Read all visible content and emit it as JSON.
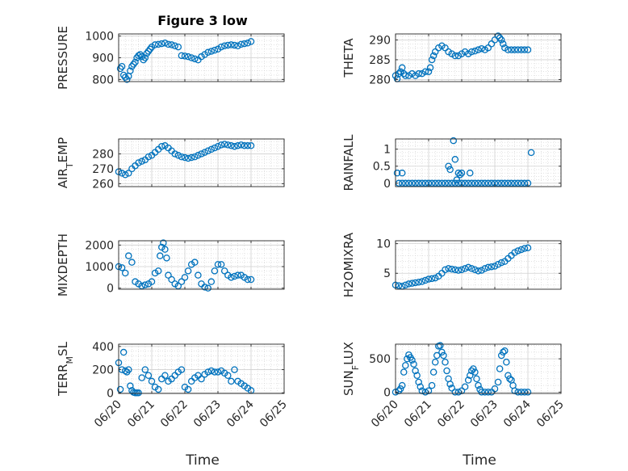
{
  "figure": {
    "title": "Figure 3 low",
    "xlabel": "Time",
    "xticks": [
      "06/20",
      "06/21",
      "06/22",
      "06/23",
      "06/24",
      "06/25"
    ]
  },
  "colors": {
    "marker": "#0072BD",
    "grid": "#d0d0d0",
    "axis": "#262626"
  },
  "chart_data": [
    {
      "type": "scatter",
      "ylabel": "PRESSURE",
      "ylim": [
        790,
        1010
      ],
      "yticks": [
        "800",
        "900",
        "1000"
      ],
      "grid": true,
      "marker": "open-circle",
      "x": [
        20.05,
        20.1,
        20.15,
        20.2,
        20.25,
        20.3,
        20.35,
        20.4,
        20.45,
        20.5,
        20.55,
        20.6,
        20.65,
        20.7,
        20.75,
        20.8,
        20.85,
        20.9,
        20.95,
        21.0,
        21.1,
        21.2,
        21.3,
        21.4,
        21.5,
        21.6,
        21.7,
        21.8,
        21.9,
        22.0,
        22.1,
        22.2,
        22.3,
        22.4,
        22.5,
        22.6,
        22.7,
        22.8,
        22.9,
        23.0,
        23.1,
        23.2,
        23.3,
        23.4,
        23.5,
        23.6,
        23.7,
        23.8,
        23.9,
        24.0
      ],
      "y": [
        850,
        860,
        820,
        810,
        800,
        815,
        840,
        860,
        870,
        880,
        900,
        910,
        915,
        905,
        890,
        900,
        920,
        930,
        940,
        950,
        960,
        962,
        965,
        968,
        962,
        960,
        955,
        950,
        910,
        908,
        905,
        900,
        895,
        890,
        905,
        915,
        925,
        930,
        935,
        940,
        950,
        955,
        958,
        960,
        958,
        955,
        962,
        965,
        968,
        975
      ]
    },
    {
      "type": "scatter",
      "ylabel": "THETA",
      "ylim": [
        279.5,
        291.5
      ],
      "yticks": [
        "280",
        "285",
        "290"
      ],
      "grid": true,
      "marker": "open-circle",
      "x": [
        20.0,
        20.05,
        20.1,
        20.15,
        20.2,
        20.25,
        20.3,
        20.4,
        20.5,
        20.6,
        20.7,
        20.8,
        20.9,
        21.0,
        21.05,
        21.1,
        21.15,
        21.2,
        21.3,
        21.4,
        21.5,
        21.6,
        21.7,
        21.8,
        21.9,
        22.0,
        22.1,
        22.2,
        22.3,
        22.4,
        22.5,
        22.6,
        22.7,
        22.8,
        22.9,
        23.0,
        23.1,
        23.15,
        23.2,
        23.25,
        23.3,
        23.4,
        23.5,
        23.6,
        23.7,
        23.8,
        23.9,
        24.0
      ],
      "y": [
        281,
        280.2,
        281.5,
        282,
        283,
        281.5,
        281,
        281,
        281.5,
        281,
        281.5,
        281.5,
        282,
        282,
        283,
        285,
        286,
        287,
        288,
        288.5,
        288,
        287,
        286.5,
        286,
        286,
        286.5,
        287,
        286.5,
        287,
        287.2,
        287.5,
        287.8,
        287.5,
        288,
        289,
        290,
        291,
        290.5,
        290,
        289,
        288,
        287.5,
        287.5,
        287.5,
        287.5,
        287.5,
        287.5,
        287.5
      ]
    },
    {
      "type": "scatter",
      "ylabel": "AIR_TEMP",
      "ylim": [
        258,
        290
      ],
      "yticks": [
        "260",
        "270",
        "280"
      ],
      "grid": true,
      "marker": "open-circle",
      "x": [
        20.0,
        20.1,
        20.2,
        20.3,
        20.4,
        20.5,
        20.6,
        20.7,
        20.8,
        20.9,
        21.0,
        21.1,
        21.2,
        21.3,
        21.4,
        21.5,
        21.6,
        21.7,
        21.8,
        21.9,
        22.0,
        22.1,
        22.2,
        22.3,
        22.4,
        22.5,
        22.6,
        22.7,
        22.8,
        22.9,
        23.0,
        23.1,
        23.2,
        23.3,
        23.4,
        23.5,
        23.6,
        23.7,
        23.8,
        23.9,
        24.0
      ],
      "y": [
        268,
        267,
        266,
        267,
        270,
        272,
        274,
        275,
        276,
        278,
        279,
        281,
        283,
        285,
        285.5,
        284,
        282,
        280,
        279,
        278,
        277.5,
        277,
        277.5,
        278,
        279,
        280,
        281,
        282,
        283,
        284,
        285,
        286,
        286.5,
        286,
        285.5,
        285,
        285.5,
        286,
        285.5,
        285.5,
        285.5
      ]
    },
    {
      "type": "scatter",
      "ylabel": "RAINFALL",
      "ylim": [
        -0.1,
        1.3
      ],
      "yticks": [
        "0",
        "0.5",
        "1"
      ],
      "grid": true,
      "marker": "open-circle",
      "x": [
        20.1,
        20.2,
        20.3,
        20.4,
        20.5,
        20.6,
        20.7,
        20.8,
        20.9,
        21.0,
        21.1,
        21.2,
        21.3,
        21.4,
        21.5,
        21.6,
        21.7,
        21.8,
        21.9,
        22.0,
        22.1,
        22.2,
        22.3,
        22.4,
        22.5,
        22.6,
        22.7,
        22.8,
        22.9,
        23.0,
        23.1,
        23.2,
        23.3,
        23.4,
        23.5,
        23.6,
        23.7,
        23.8,
        23.9,
        24.0,
        20.05,
        20.2,
        21.6,
        21.65,
        21.75,
        21.8,
        21.85,
        21.9,
        21.95,
        22.0,
        22.25,
        24.1
      ],
      "y": [
        0,
        0,
        0,
        0,
        0,
        0,
        0,
        0,
        0,
        0,
        0,
        0,
        0,
        0,
        0,
        0,
        0,
        0,
        0,
        0,
        0,
        0,
        0,
        0,
        0,
        0,
        0,
        0,
        0,
        0,
        0,
        0,
        0,
        0,
        0,
        0,
        0,
        0,
        0,
        0,
        0.3,
        0.3,
        0.5,
        0.4,
        1.25,
        0.7,
        0.1,
        0.3,
        0.25,
        0.3,
        0.3,
        0.9
      ]
    },
    {
      "type": "scatter",
      "ylabel": "MIXDEPTH",
      "ylim": [
        -50,
        2200
      ],
      "yticks": [
        "0",
        "1000",
        "2000"
      ],
      "grid": true,
      "marker": "open-circle",
      "x": [
        20.0,
        20.1,
        20.2,
        20.3,
        20.4,
        20.5,
        20.6,
        20.7,
        20.8,
        20.9,
        21.0,
        21.1,
        21.2,
        21.25,
        21.3,
        21.35,
        21.4,
        21.45,
        21.5,
        21.6,
        21.7,
        21.8,
        21.9,
        22.0,
        22.1,
        22.2,
        22.3,
        22.4,
        22.5,
        22.6,
        22.7,
        22.8,
        22.9,
        23.0,
        23.1,
        23.2,
        23.3,
        23.4,
        23.5,
        23.6,
        23.7,
        23.8,
        23.9,
        24.0
      ],
      "y": [
        1000,
        950,
        700,
        1500,
        1200,
        300,
        200,
        100,
        150,
        200,
        300,
        700,
        800,
        1500,
        1900,
        2100,
        1800,
        1400,
        600,
        400,
        200,
        100,
        300,
        500,
        800,
        1100,
        1200,
        600,
        200,
        50,
        0,
        300,
        800,
        1100,
        1100,
        800,
        600,
        500,
        550,
        600,
        600,
        500,
        400,
        400
      ]
    },
    {
      "type": "scatter",
      "ylabel": "H2OMIXRA",
      "ylim": [
        2.3,
        10.5
      ],
      "yticks": [
        "5",
        "10"
      ],
      "grid": true,
      "marker": "open-circle",
      "x": [
        20.0,
        20.1,
        20.2,
        20.3,
        20.4,
        20.5,
        20.6,
        20.7,
        20.8,
        20.9,
        21.0,
        21.1,
        21.2,
        21.3,
        21.4,
        21.5,
        21.6,
        21.7,
        21.8,
        21.9,
        22.0,
        22.1,
        22.2,
        22.3,
        22.4,
        22.5,
        22.6,
        22.7,
        22.8,
        22.9,
        23.0,
        23.1,
        23.2,
        23.3,
        23.4,
        23.5,
        23.6,
        23.7,
        23.8,
        23.9,
        24.0
      ],
      "y": [
        3,
        2.9,
        2.8,
        3,
        3.2,
        3.3,
        3.4,
        3.5,
        3.6,
        3.8,
        4,
        4.1,
        4.2,
        4.5,
        5,
        5.6,
        5.8,
        5.7,
        5.6,
        5.5,
        5.6,
        5.8,
        6,
        5.8,
        5.6,
        5.4,
        5.5,
        5.8,
        6,
        6.1,
        6.2,
        6.5,
        6.8,
        7,
        7.5,
        8,
        8.5,
        8.8,
        9,
        9.2,
        9.3
      ]
    },
    {
      "type": "scatter",
      "ylabel": "TERR_MSL",
      "ylim": [
        -5,
        420
      ],
      "yticks": [
        "0",
        "200",
        "400"
      ],
      "grid": true,
      "marker": "open-circle",
      "x": [
        20.0,
        20.05,
        20.1,
        20.15,
        20.2,
        20.25,
        20.3,
        20.35,
        20.4,
        20.45,
        20.5,
        20.55,
        20.6,
        20.7,
        20.8,
        20.9,
        21.0,
        21.1,
        21.2,
        21.3,
        21.4,
        21.5,
        21.6,
        21.7,
        21.8,
        21.9,
        22.0,
        22.1,
        22.2,
        22.3,
        22.4,
        22.5,
        22.6,
        22.7,
        22.8,
        22.9,
        23.0,
        23.1,
        23.2,
        23.3,
        23.4,
        23.5,
        23.6,
        23.7,
        23.8,
        23.9,
        24.0
      ],
      "y": [
        260,
        30,
        200,
        350,
        190,
        180,
        200,
        60,
        20,
        5,
        0,
        0,
        0,
        130,
        200,
        150,
        100,
        50,
        30,
        120,
        150,
        100,
        120,
        150,
        180,
        200,
        50,
        30,
        100,
        130,
        150,
        120,
        160,
        180,
        190,
        180,
        180,
        190,
        170,
        150,
        100,
        200,
        100,
        80,
        60,
        40,
        20
      ]
    },
    {
      "type": "scatter",
      "ylabel": "SUN_FLUX",
      "ylim": [
        -20,
        720
      ],
      "yticks": [
        "0",
        "500"
      ],
      "grid": true,
      "marker": "open-circle",
      "x": [
        20.0,
        20.1,
        20.15,
        20.2,
        20.25,
        20.3,
        20.35,
        20.4,
        20.45,
        20.5,
        20.55,
        20.6,
        20.65,
        20.7,
        20.75,
        20.8,
        20.9,
        21.0,
        21.1,
        21.15,
        21.2,
        21.25,
        21.3,
        21.35,
        21.4,
        21.45,
        21.5,
        21.55,
        21.6,
        21.65,
        21.7,
        21.8,
        21.9,
        22.0,
        22.1,
        22.2,
        22.25,
        22.3,
        22.35,
        22.4,
        22.45,
        22.5,
        22.55,
        22.6,
        22.7,
        22.8,
        22.9,
        23.0,
        23.1,
        23.15,
        23.2,
        23.25,
        23.3,
        23.35,
        23.4,
        23.45,
        23.5,
        23.55,
        23.6,
        23.7,
        23.8,
        23.9,
        24.0
      ],
      "y": [
        0,
        20,
        50,
        100,
        300,
        400,
        500,
        560,
        520,
        480,
        420,
        320,
        250,
        150,
        80,
        20,
        0,
        20,
        100,
        300,
        450,
        550,
        690,
        700,
        600,
        550,
        450,
        320,
        200,
        120,
        60,
        0,
        0,
        20,
        80,
        180,
        250,
        320,
        350,
        300,
        200,
        100,
        40,
        0,
        0,
        0,
        0,
        50,
        150,
        350,
        550,
        600,
        620,
        450,
        250,
        200,
        180,
        100,
        20,
        0,
        0,
        0,
        0
      ]
    }
  ]
}
